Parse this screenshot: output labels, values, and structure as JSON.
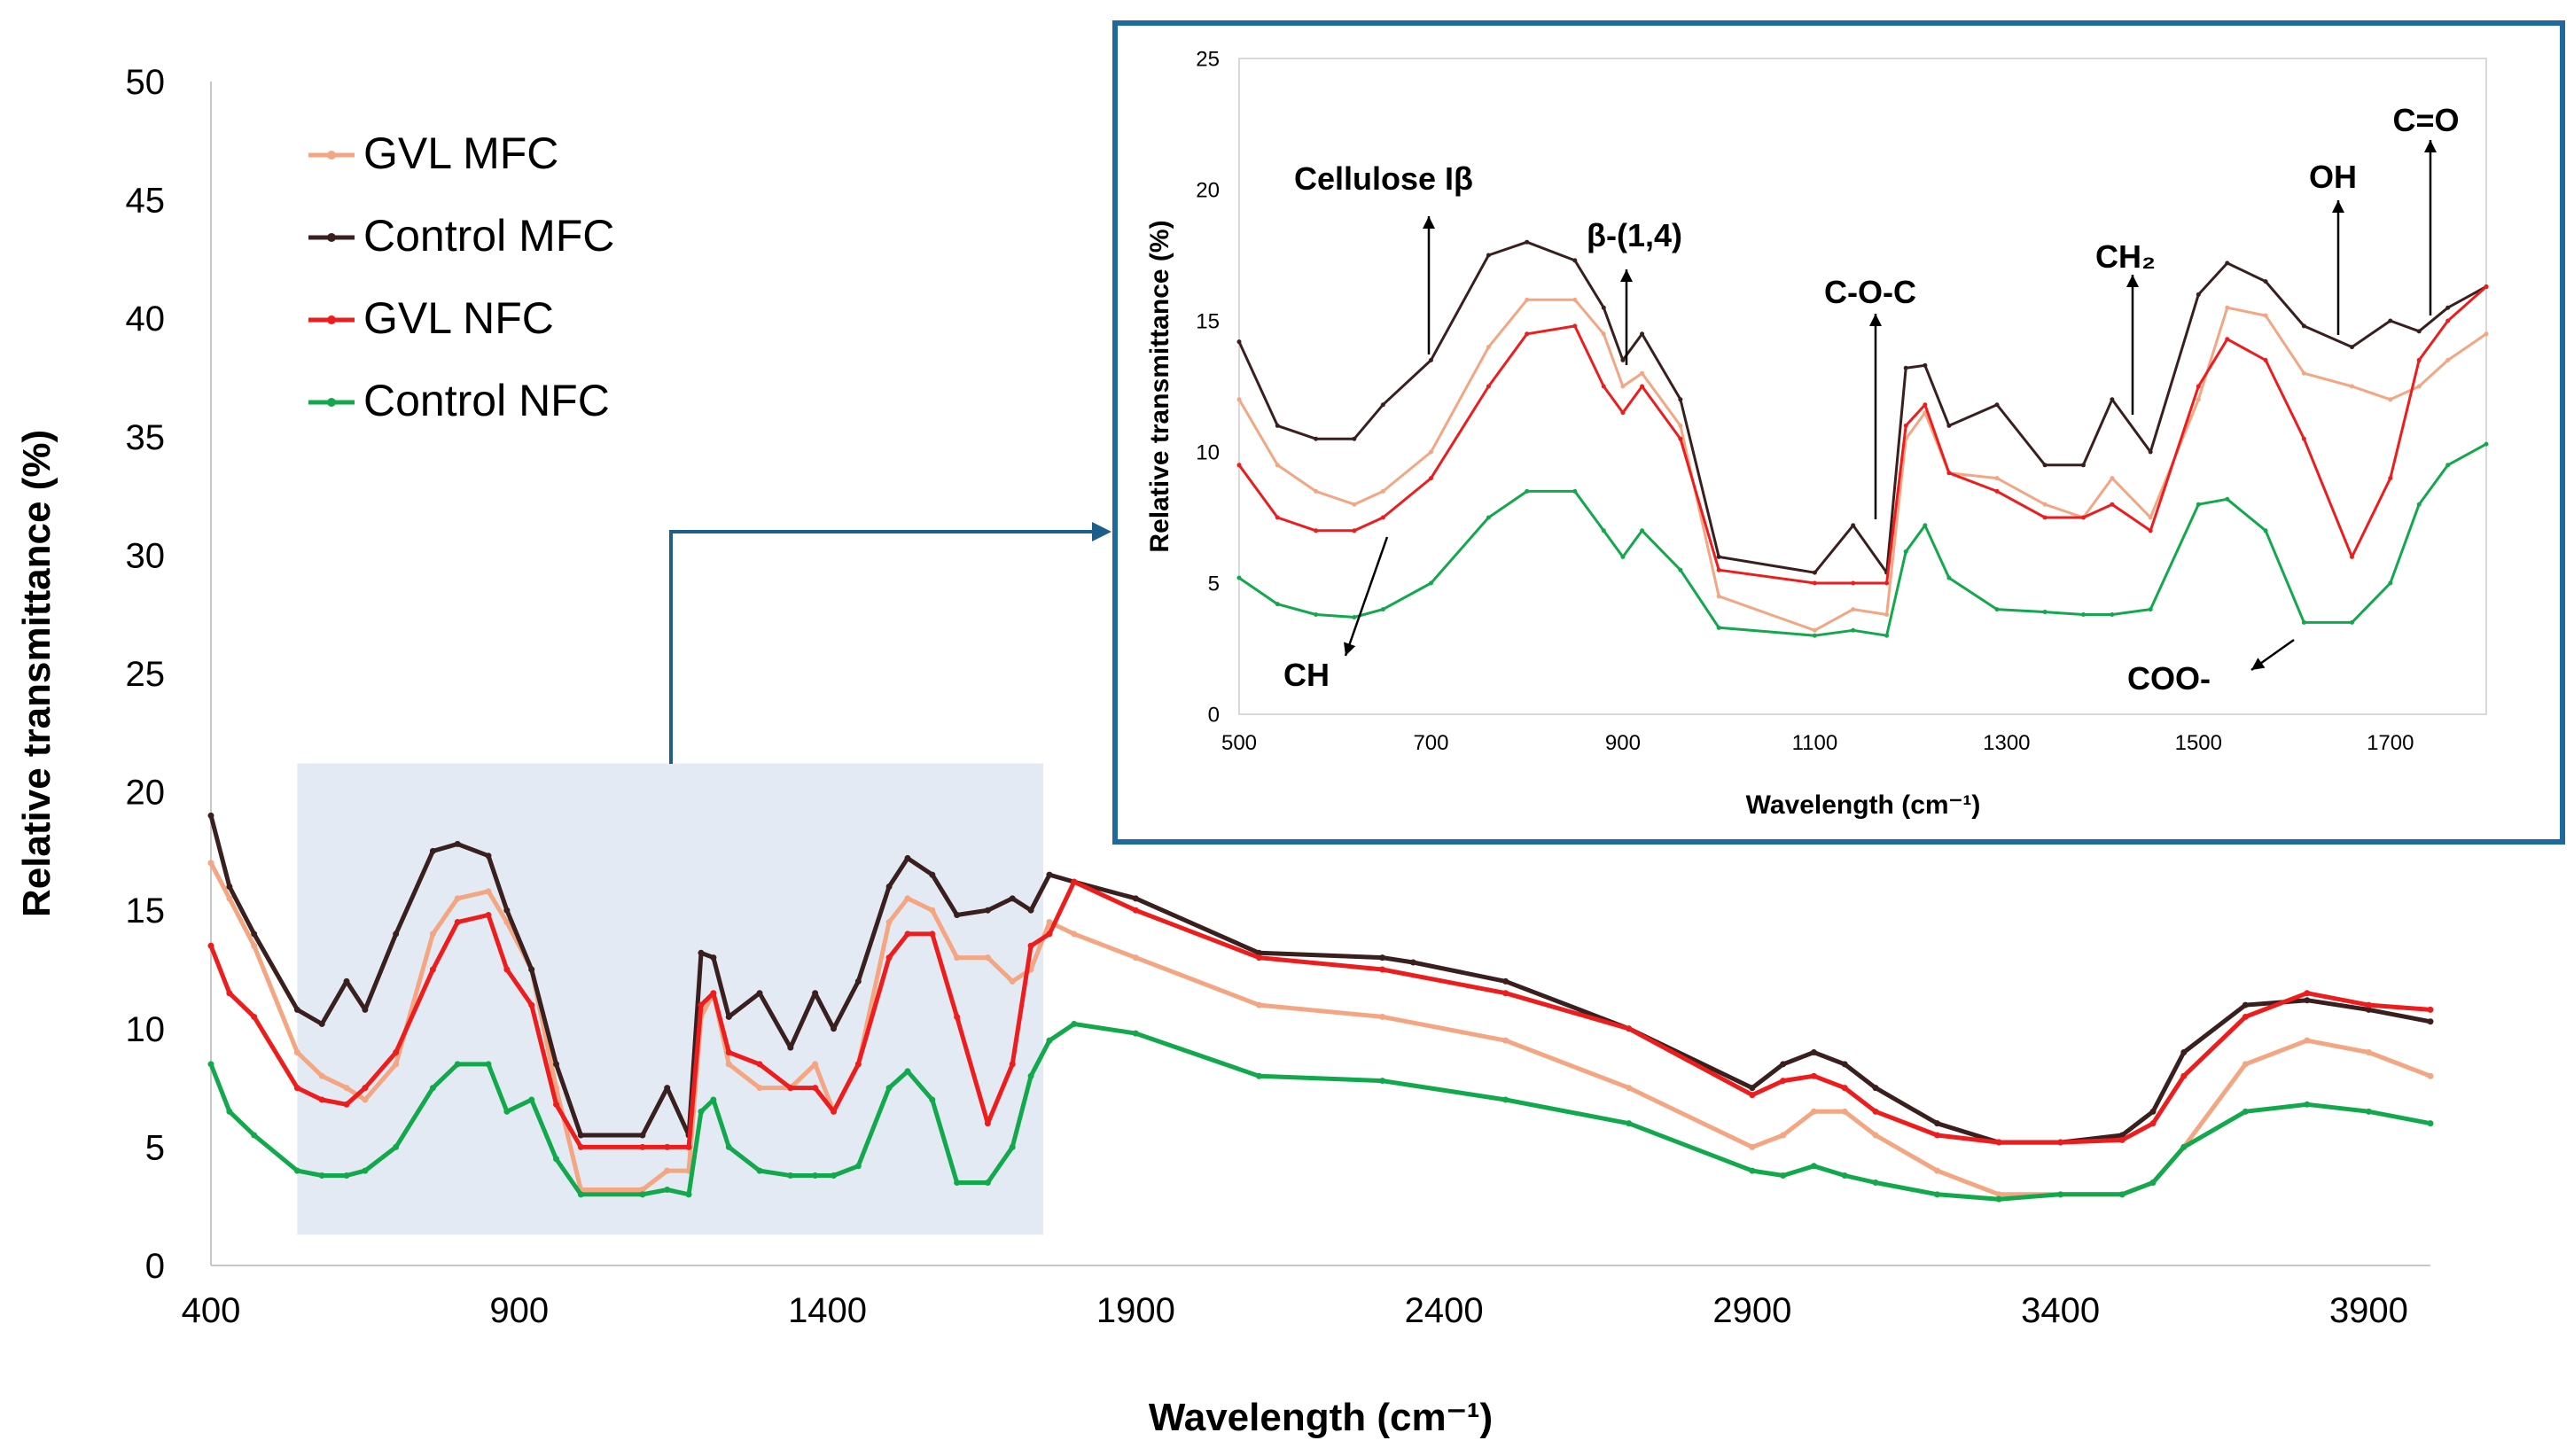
{
  "colors": {
    "gvl_mfc": "#f4a582",
    "control_mfc": "#3a1f1f",
    "gvl_nfc": "#ee1c1c",
    "control_nfc": "#12a84c",
    "highlight": "#e3eaf3",
    "inset_border": "#1e6aa0",
    "connector": "#1e5f8a"
  },
  "chart_data": [
    {
      "name": "main",
      "type": "line",
      "title": "",
      "xlabel": "Wavelength (cm⁻¹)",
      "ylabel": "Relative transmittance (%)",
      "xlim": [
        400,
        4000
      ],
      "ylim": [
        0,
        50
      ],
      "xticks": [
        400,
        900,
        1400,
        1900,
        2400,
        2900,
        3400,
        3900
      ],
      "yticks": [
        0,
        5,
        10,
        15,
        20,
        25,
        30,
        35,
        40,
        45,
        50
      ],
      "grid": false,
      "legend_position": "top-left",
      "highlight_region": {
        "x": [
          540,
          1750
        ],
        "y": [
          1.3,
          21.2
        ]
      },
      "series": [
        {
          "name": "GVL MFC",
          "key": "gvl_mfc",
          "x": [
            400,
            430,
            470,
            540,
            580,
            620,
            650,
            700,
            760,
            800,
            850,
            880,
            920,
            960,
            1000,
            1100,
            1140,
            1175,
            1195,
            1215,
            1240,
            1290,
            1340,
            1380,
            1410,
            1450,
            1500,
            1530,
            1570,
            1610,
            1660,
            1700,
            1730,
            1760,
            1800,
            1900,
            2100,
            2300,
            2500,
            2700,
            2900,
            2950,
            3000,
            3050,
            3100,
            3200,
            3300,
            3400,
            3500,
            3550,
            3600,
            3700,
            3800,
            3900,
            4000
          ],
          "y": [
            17,
            15.5,
            13.5,
            9,
            8,
            7.5,
            7,
            8.5,
            14,
            15.5,
            15.8,
            14.5,
            12.5,
            7.5,
            3.2,
            3.2,
            4,
            4,
            10.5,
            11.5,
            8.5,
            7.5,
            7.5,
            8.5,
            6.5,
            8.5,
            14.5,
            15.5,
            15,
            13,
            13,
            12,
            12.5,
            14.5,
            14,
            13,
            11,
            10.5,
            9.5,
            7.5,
            5,
            5.5,
            6.5,
            6.5,
            5.5,
            4,
            3,
            3,
            3,
            3.5,
            5,
            8.5,
            9.5,
            9,
            8
          ]
        },
        {
          "name": "Control MFC",
          "key": "control_mfc",
          "x": [
            400,
            430,
            470,
            540,
            580,
            620,
            650,
            700,
            760,
            800,
            850,
            880,
            920,
            960,
            1000,
            1100,
            1140,
            1175,
            1195,
            1215,
            1240,
            1290,
            1340,
            1380,
            1410,
            1450,
            1500,
            1530,
            1570,
            1610,
            1660,
            1700,
            1730,
            1760,
            1800,
            1900,
            2100,
            2300,
            2350,
            2500,
            2700,
            2900,
            2950,
            3000,
            3050,
            3100,
            3200,
            3300,
            3400,
            3500,
            3550,
            3600,
            3700,
            3800,
            3900,
            4000
          ],
          "y": [
            19,
            16,
            14,
            10.8,
            10.2,
            12,
            10.8,
            14,
            17.5,
            17.8,
            17.3,
            15,
            12.5,
            8.5,
            5.5,
            5.5,
            7.5,
            5.5,
            13.2,
            13,
            10.5,
            11.5,
            9.2,
            11.5,
            10,
            12,
            16,
            17.2,
            16.5,
            14.8,
            15,
            15.5,
            15,
            16.5,
            16.2,
            15.5,
            13.2,
            13,
            12.8,
            12,
            10,
            7.5,
            8.5,
            9,
            8.5,
            7.5,
            6,
            5.2,
            5.2,
            5.5,
            6.5,
            9,
            11,
            11.2,
            10.8,
            10.3
          ]
        },
        {
          "name": "GVL NFC",
          "key": "gvl_nfc",
          "x": [
            400,
            430,
            470,
            540,
            580,
            620,
            650,
            700,
            760,
            800,
            850,
            880,
            920,
            960,
            1000,
            1100,
            1140,
            1175,
            1195,
            1215,
            1240,
            1290,
            1340,
            1380,
            1410,
            1450,
            1500,
            1530,
            1570,
            1610,
            1660,
            1700,
            1730,
            1760,
            1800,
            1900,
            2100,
            2300,
            2500,
            2700,
            2900,
            2950,
            3000,
            3050,
            3100,
            3200,
            3300,
            3400,
            3500,
            3550,
            3600,
            3700,
            3800,
            3900,
            4000
          ],
          "y": [
            13.5,
            11.5,
            10.5,
            7.5,
            7,
            6.8,
            7.5,
            9,
            12.5,
            14.5,
            14.8,
            12.5,
            11,
            6.8,
            5,
            5,
            5,
            5,
            11,
            11.5,
            9,
            8.5,
            7.5,
            7.5,
            6.5,
            8.5,
            13,
            14,
            14,
            10.5,
            6,
            8.5,
            13.5,
            14,
            16.2,
            15,
            13,
            12.5,
            11.5,
            10,
            7.2,
            7.8,
            8,
            7.5,
            6.5,
            5.5,
            5.2,
            5.2,
            5.3,
            6,
            8,
            10.5,
            11.5,
            11,
            10.8
          ]
        },
        {
          "name": "Control NFC",
          "key": "control_nfc",
          "x": [
            400,
            430,
            470,
            540,
            580,
            620,
            650,
            700,
            760,
            800,
            850,
            880,
            920,
            960,
            1000,
            1100,
            1140,
            1175,
            1195,
            1215,
            1240,
            1290,
            1340,
            1380,
            1410,
            1450,
            1500,
            1530,
            1570,
            1610,
            1660,
            1700,
            1730,
            1760,
            1800,
            1900,
            2100,
            2300,
            2500,
            2700,
            2900,
            2950,
            3000,
            3050,
            3100,
            3200,
            3300,
            3400,
            3500,
            3550,
            3600,
            3700,
            3800,
            3900,
            4000
          ],
          "y": [
            8.5,
            6.5,
            5.5,
            4,
            3.8,
            3.8,
            4,
            5,
            7.5,
            8.5,
            8.5,
            6.5,
            7,
            4.5,
            3,
            3,
            3.2,
            3,
            6.5,
            7,
            5,
            4,
            3.8,
            3.8,
            3.8,
            4.2,
            7.5,
            8.2,
            7,
            3.5,
            3.5,
            5,
            8,
            9.5,
            10.2,
            9.8,
            8,
            7.8,
            7,
            6,
            4,
            3.8,
            4.2,
            3.8,
            3.5,
            3,
            2.8,
            3,
            3,
            3.5,
            5,
            6.5,
            6.8,
            6.5,
            6
          ]
        }
      ]
    },
    {
      "name": "inset",
      "type": "line",
      "title": "",
      "xlabel": "Wavelength (cm⁻¹)",
      "ylabel": "Relative transmittance (%)",
      "xlim": [
        500,
        1800
      ],
      "ylim": [
        0,
        25
      ],
      "xticks": [
        500,
        700,
        900,
        1100,
        1300,
        1500,
        1700
      ],
      "yticks": [
        0,
        5,
        10,
        15,
        20,
        25
      ],
      "grid": false,
      "annotations": [
        {
          "label": "Cellulose Iβ",
          "x": 700
        },
        {
          "label": "β-(1,4)",
          "x": 897
        },
        {
          "label": "C-O-C",
          "x": 1160
        },
        {
          "label": "CH₂",
          "x": 1430
        },
        {
          "label": "OH",
          "x": 1645
        },
        {
          "label": "C=O",
          "x": 1735
        },
        {
          "label": "CH",
          "x": 650
        },
        {
          "label": "COO-",
          "x": 1600
        }
      ],
      "series": [
        {
          "name": "GVL MFC",
          "key": "gvl_mfc",
          "x": [
            500,
            540,
            580,
            620,
            650,
            700,
            760,
            800,
            850,
            880,
            900,
            920,
            960,
            1000,
            1100,
            1140,
            1175,
            1195,
            1215,
            1240,
            1290,
            1340,
            1380,
            1410,
            1450,
            1500,
            1530,
            1570,
            1610,
            1660,
            1700,
            1730,
            1760,
            1800
          ],
          "y": [
            12,
            9.5,
            8.5,
            8,
            8.5,
            10,
            14,
            15.8,
            15.8,
            14.5,
            12.5,
            13,
            11,
            4.5,
            3.2,
            4,
            3.8,
            10.5,
            11.5,
            9.2,
            9,
            8,
            7.5,
            9,
            7.5,
            12,
            15.5,
            15.2,
            13,
            12.5,
            12,
            12.5,
            13.5,
            14.5
          ]
        },
        {
          "name": "Control MFC",
          "key": "control_mfc",
          "x": [
            500,
            540,
            580,
            620,
            650,
            700,
            760,
            800,
            850,
            880,
            900,
            920,
            960,
            1000,
            1100,
            1140,
            1175,
            1195,
            1215,
            1240,
            1290,
            1340,
            1380,
            1410,
            1450,
            1500,
            1530,
            1570,
            1610,
            1660,
            1700,
            1730,
            1760,
            1800
          ],
          "y": [
            14.2,
            11,
            10.5,
            10.5,
            11.8,
            13.5,
            17.5,
            18,
            17.3,
            15.5,
            13.5,
            14.5,
            12,
            6,
            5.4,
            7.2,
            5.4,
            13.2,
            13.3,
            11,
            11.8,
            9.5,
            9.5,
            12,
            10,
            16,
            17.2,
            16.5,
            14.8,
            14,
            15,
            14.6,
            15.5,
            16.3
          ]
        },
        {
          "name": "GVL NFC",
          "key": "gvl_nfc",
          "x": [
            500,
            540,
            580,
            620,
            650,
            700,
            760,
            800,
            850,
            880,
            900,
            920,
            960,
            1000,
            1100,
            1140,
            1175,
            1195,
            1215,
            1240,
            1290,
            1340,
            1380,
            1410,
            1450,
            1500,
            1530,
            1570,
            1610,
            1660,
            1700,
            1730,
            1760,
            1800
          ],
          "y": [
            9.5,
            7.5,
            7,
            7,
            7.5,
            9,
            12.5,
            14.5,
            14.8,
            12.5,
            11.5,
            12.5,
            10.5,
            5.5,
            5,
            5,
            5,
            11,
            11.8,
            9.2,
            8.5,
            7.5,
            7.5,
            8,
            7,
            12.5,
            14.3,
            13.5,
            10.5,
            6,
            9,
            13.5,
            15,
            16.3
          ]
        },
        {
          "name": "Control NFC",
          "key": "control_nfc",
          "x": [
            500,
            540,
            580,
            620,
            650,
            700,
            760,
            800,
            850,
            880,
            900,
            920,
            960,
            1000,
            1100,
            1140,
            1175,
            1195,
            1215,
            1240,
            1290,
            1340,
            1380,
            1410,
            1450,
            1500,
            1530,
            1570,
            1610,
            1660,
            1700,
            1730,
            1760,
            1800
          ],
          "y": [
            5.2,
            4.2,
            3.8,
            3.7,
            4,
            5,
            7.5,
            8.5,
            8.5,
            7,
            6,
            7,
            5.5,
            3.3,
            3,
            3.2,
            3,
            6.2,
            7.2,
            5.2,
            4,
            3.9,
            3.8,
            3.8,
            4,
            8,
            8.2,
            7,
            3.5,
            3.5,
            5,
            8,
            9.5,
            10.3
          ]
        }
      ]
    }
  ]
}
